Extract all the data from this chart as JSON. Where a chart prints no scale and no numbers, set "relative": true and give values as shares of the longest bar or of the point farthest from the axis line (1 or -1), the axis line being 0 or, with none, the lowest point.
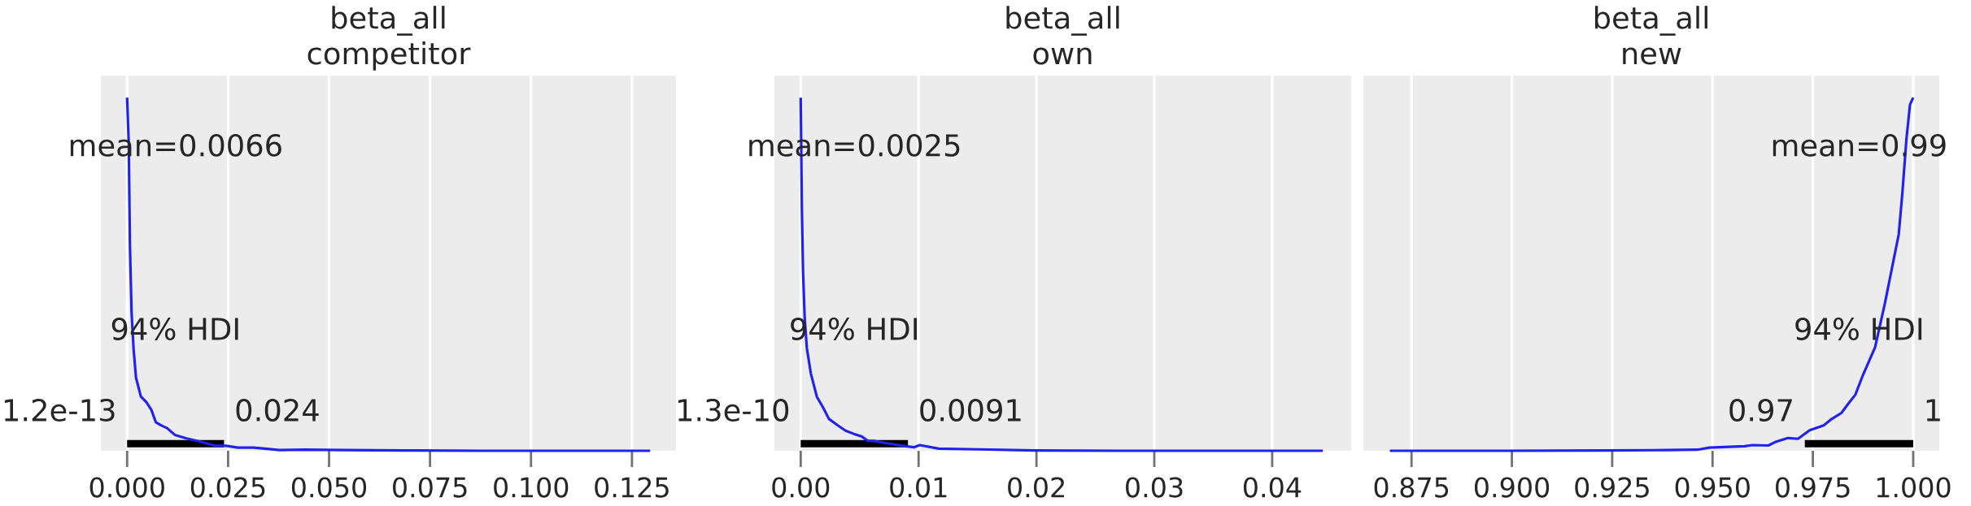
{
  "chart_data": [
    {
      "type": "line",
      "title": "beta_all",
      "subtitle": "competitor",
      "relative": true,
      "grid": "x",
      "tick_labels": "x",
      "xlim": [
        -0.0065,
        0.1359
      ],
      "xticks": [
        {
          "value": 0,
          "label": "0.000"
        },
        {
          "value": 0.025,
          "label": "0.025"
        },
        {
          "value": 0.05,
          "label": "0.050"
        },
        {
          "value": 0.075,
          "label": "0.075"
        },
        {
          "value": 0.1,
          "label": "0.100"
        },
        {
          "value": 0.125,
          "label": "0.125"
        }
      ],
      "series": [
        {
          "color": "#2222ee",
          "x": [
            0,
            0.0004,
            0.0007,
            0.0011,
            0.0016,
            0.0022,
            0.0034,
            0.0048,
            0.006,
            0.0071,
            0.0084,
            0.0099,
            0.0118,
            0.0147,
            0.0177,
            0.0216,
            0.0245,
            0.0274,
            0.0313,
            0.0352,
            0.0377,
            0.044,
            0.0538,
            0.0685,
            0.088,
            0.1075,
            0.1295
          ],
          "values": [
            1.0,
            0.872,
            0.58,
            0.393,
            0.288,
            0.207,
            0.154,
            0.137,
            0.116,
            0.081,
            0.072,
            0.064,
            0.045,
            0.035,
            0.027,
            0.015,
            0.014,
            0.009,
            0.009,
            0.005,
            0.002,
            0.003,
            0.002,
            0.001,
            0,
            0,
            0
          ]
        },
        {
          "color": "#000000",
          "x": [
            1.2e-13,
            0.024
          ],
          "values": [
            0.02,
            0.02
          ]
        }
      ],
      "annotations": [
        "mean=0.0066",
        "94% HDI",
        "1.2e-13",
        "0.024"
      ]
    },
    {
      "type": "line",
      "title": "beta_all",
      "subtitle": "own",
      "relative": true,
      "grid": "x",
      "tick_labels": "x",
      "xlim": [
        -0.00223,
        0.0467
      ],
      "xticks": [
        {
          "value": 0,
          "label": "0.00"
        },
        {
          "value": 0.01,
          "label": "0.01"
        },
        {
          "value": 0.02,
          "label": "0.02"
        },
        {
          "value": 0.03,
          "label": "0.03"
        },
        {
          "value": 0.04,
          "label": "0.04"
        }
      ],
      "series": [
        {
          "color": "#2222ee",
          "x": [
            0,
            0.0001,
            0.0002,
            0.00034,
            0.00052,
            0.00086,
            0.00137,
            0.00189,
            0.0024,
            0.0031,
            0.0038,
            0.0045,
            0.0052,
            0.0057,
            0.0062,
            0.0072,
            0.0089,
            0.0096,
            0.0101,
            0.0117,
            0.0151,
            0.0199,
            0.0271,
            0.0443
          ],
          "values": [
            1.0,
            0.686,
            0.507,
            0.375,
            0.291,
            0.219,
            0.153,
            0.123,
            0.09,
            0.073,
            0.057,
            0.048,
            0.04,
            0.028,
            0.028,
            0.022,
            0.013,
            0.01,
            0.016,
            0.006,
            0.004,
            0.001,
            0,
            0
          ]
        },
        {
          "color": "#000000",
          "x": [
            1.3e-10,
            0.0091
          ],
          "values": [
            0.02,
            0.02
          ]
        }
      ],
      "annotations": [
        "mean=0.0025",
        "94% HDI",
        "1.3e-10",
        "0.0091"
      ]
    },
    {
      "type": "line",
      "title": "beta_all",
      "subtitle": "new",
      "relative": true,
      "grid": "x",
      "tick_labels": "x",
      "xlim": [
        0.863,
        1.0065
      ],
      "xticks": [
        {
          "value": 0.875,
          "label": "0.875"
        },
        {
          "value": 0.9,
          "label": "0.900"
        },
        {
          "value": 0.925,
          "label": "0.925"
        },
        {
          "value": 0.95,
          "label": "0.950"
        },
        {
          "value": 0.975,
          "label": "0.975"
        },
        {
          "value": 1.0,
          "label": "1.000"
        }
      ],
      "series": [
        {
          "color": "#2222ee",
          "x": [
            0.8696,
            0.8991,
            0.9236,
            0.9384,
            0.9462,
            0.9492,
            0.958,
            0.96,
            0.9639,
            0.9659,
            0.9688,
            0.9713,
            0.9742,
            0.9777,
            0.9797,
            0.9821,
            0.9836,
            0.9856,
            0.9875,
            0.9905,
            0.9929,
            0.9964,
            0.9973,
            0.9983,
            0.9992,
            1.0
          ],
          "values": [
            0,
            0,
            0.001,
            0.002,
            0.003,
            0.009,
            0.013,
            0.016,
            0.015,
            0.026,
            0.036,
            0.034,
            0.058,
            0.072,
            0.09,
            0.107,
            0.13,
            0.159,
            0.215,
            0.293,
            0.415,
            0.613,
            0.73,
            0.881,
            0.98,
            1.0
          ]
        },
        {
          "color": "#000000",
          "x": [
            0.973,
            1.0
          ],
          "values": [
            0.02,
            0.02
          ]
        }
      ],
      "annotations": [
        "mean=0.99",
        "94% HDI",
        "0.97",
        "1"
      ]
    }
  ]
}
